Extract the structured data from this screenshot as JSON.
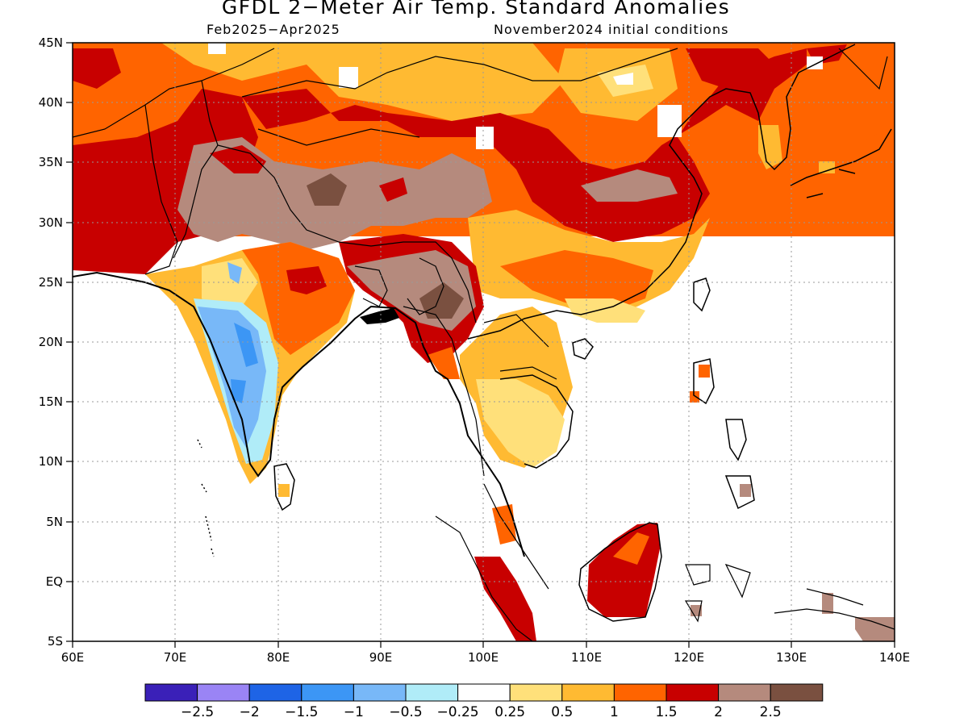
{
  "title": "GFDL 2−Meter Air Temp. Standard Anomalies",
  "subtitle_left": "Feb2025−Apr2025",
  "subtitle_right": "November2024 initial conditions",
  "map": {
    "lon_range": [
      60,
      140
    ],
    "lat_range": [
      -5,
      45
    ],
    "x_ticks": [
      "60E",
      "70E",
      "80E",
      "90E",
      "100E",
      "110E",
      "120E",
      "130E",
      "140E"
    ],
    "y_ticks": [
      "5S",
      "EQ",
      "5N",
      "10N",
      "15N",
      "20N",
      "25N",
      "30N",
      "35N",
      "40N",
      "45N"
    ],
    "gridlines": "dotted",
    "land_color": "#ffffff"
  },
  "colorbar": {
    "colors": [
      "#3a20b8",
      "#9a84f5",
      "#1e64e6",
      "#3c96f5",
      "#78b8f8",
      "#b0ecf8",
      "#ffffff",
      "#ffe07a",
      "#ffba32",
      "#ff6400",
      "#c80000",
      "#b58a7d",
      "#7a5040"
    ],
    "labels": [
      "−2.5",
      "−2",
      "−1.5",
      "−1",
      "−0.5",
      "−0.25",
      "0.25",
      "0.5",
      "1",
      "1.5",
      "2",
      "2.5"
    ]
  }
}
